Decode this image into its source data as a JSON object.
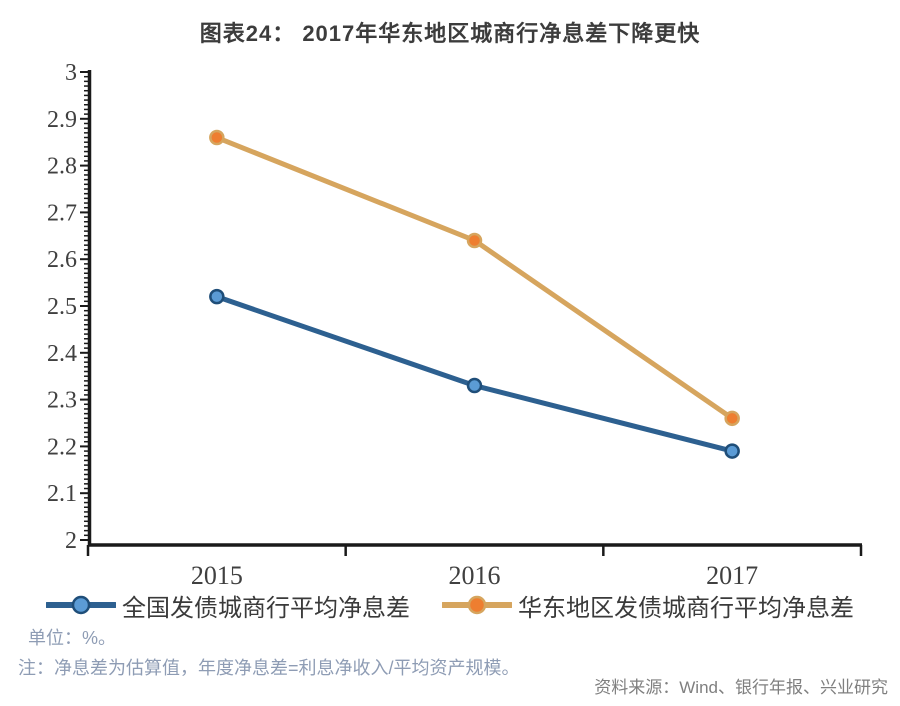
{
  "title": "图表24： 2017年华东地区城商行净息差下降更快",
  "chart_data": {
    "type": "line",
    "categories": [
      "2015",
      "2016",
      "2017"
    ],
    "series": [
      {
        "name": "全国发债城商行平均净息差",
        "values": [
          2.52,
          2.33,
          2.19
        ],
        "line_color": "#2d6090",
        "marker_fill": "#5b9bd5",
        "marker_edge": "#1f4e79"
      },
      {
        "name": "华东地区发债城商行平均净息差",
        "values": [
          2.86,
          2.64,
          2.26
        ],
        "line_color": "#d6a55e",
        "marker_fill": "#ee7e30",
        "marker_edge": "#d6a55e"
      }
    ],
    "ylim": [
      2,
      3
    ],
    "y_major_step": 0.1,
    "y_minor_step": 0.01,
    "ytick_labels": [
      "3",
      "2.9",
      "2.8",
      "2.7",
      "2.6",
      "2.5",
      "2.4",
      "2.3",
      "2.2",
      "2.1",
      "2"
    ],
    "grid": false,
    "legend_position": "bottom",
    "axis_color": "#1a1a1a",
    "tick_label_color": "#404040"
  },
  "footnotes": {
    "unit": "单位：%。",
    "note": "注：净息差为估算值，年度净息差=利息净收入/平均资产规模。",
    "source": "资料来源：Wind、银行年报、兴业研究"
  }
}
